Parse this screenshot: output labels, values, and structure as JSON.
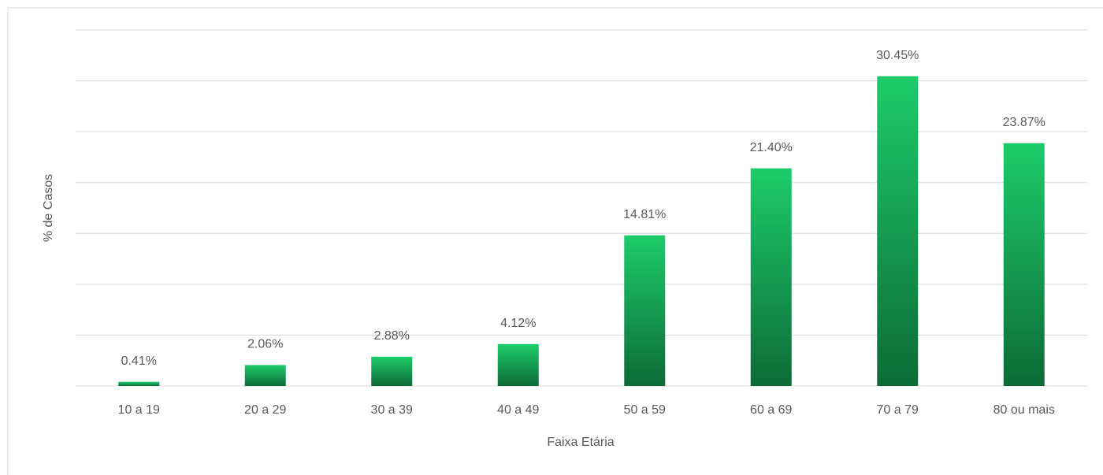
{
  "chart_data": {
    "type": "bar",
    "x_label": "Faixa Etária",
    "y_label": "% de Casos",
    "categories": [
      "10 a 19",
      "20 a 29",
      "30 a 39",
      "40 a 49",
      "50 a 59",
      "60 a 69",
      "70 a 79",
      "80 ou mais"
    ],
    "values": [
      0.41,
      2.06,
      2.88,
      4.12,
      14.81,
      21.4,
      30.45,
      23.87
    ],
    "value_labels": [
      "0.41%",
      "2.06%",
      "2.88%",
      "4.12%",
      "14.81%",
      "21.40%",
      "30.45%",
      "23.87%"
    ],
    "color": [
      "#1dcc6a",
      "#0d6b37"
    ],
    "ylim": [
      0,
      35
    ],
    "yticks": [
      0,
      5,
      10,
      15,
      20,
      25,
      30,
      35
    ],
    "grid": true
  }
}
